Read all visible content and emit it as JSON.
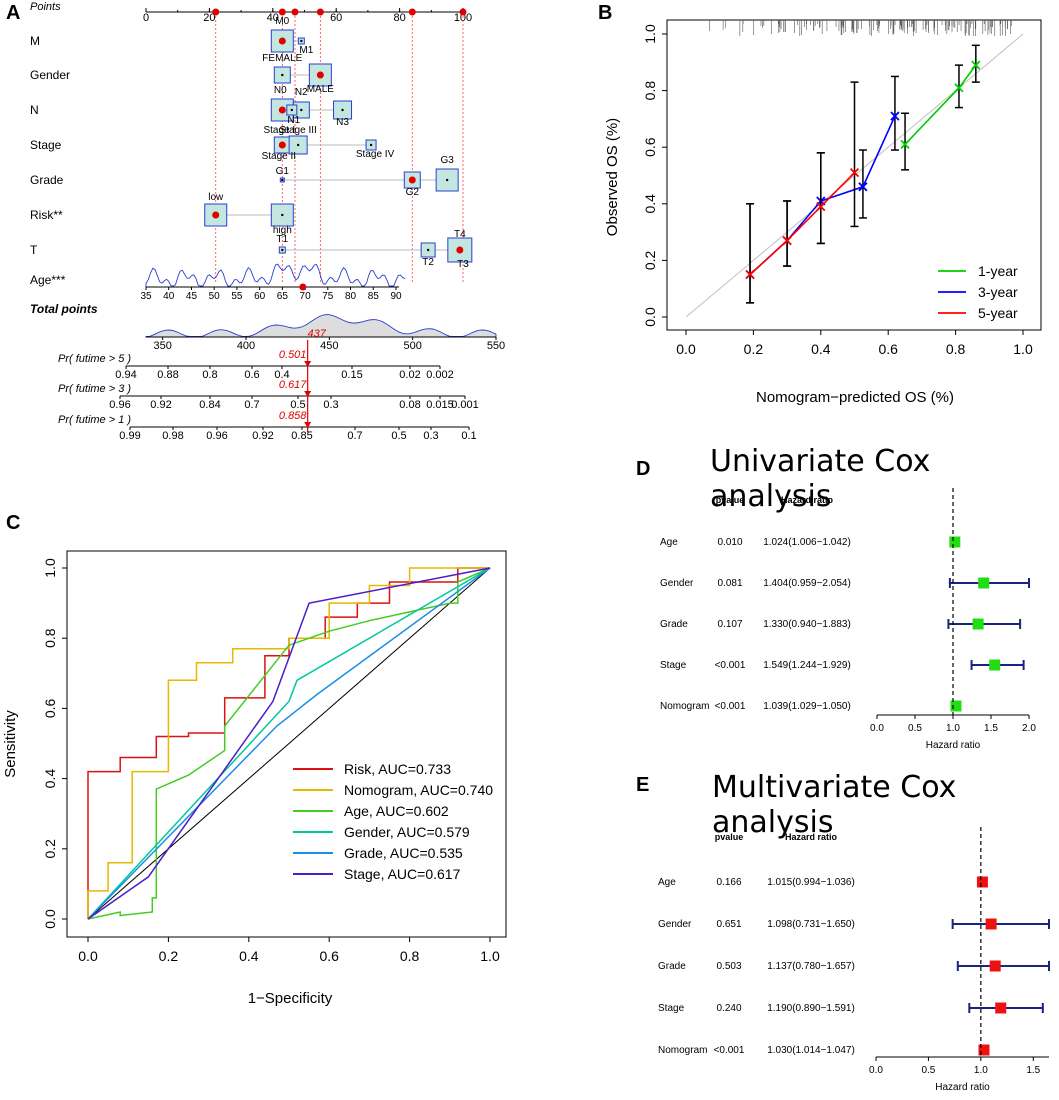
{
  "panels": {
    "A": "A",
    "B": "B",
    "C": "C",
    "D": "D",
    "E": "E"
  },
  "nomogram": {
    "points_label": "Points",
    "points_ticks": [
      "0",
      "20",
      "40",
      "60",
      "80",
      "100"
    ],
    "variables": [
      {
        "name": "M",
        "levels": [
          "M0",
          "M1"
        ]
      },
      {
        "name": "Gender",
        "levels": [
          "FEMALE",
          "MALE"
        ]
      },
      {
        "name": "N",
        "levels": [
          "N0",
          "N2",
          "N1",
          "N3"
        ]
      },
      {
        "name": "Stage",
        "levels": [
          "Stage I",
          "Stage III",
          "Stage II",
          "Stage IV"
        ]
      },
      {
        "name": "Grade",
        "levels": [
          "G1",
          "G2",
          "G3"
        ]
      },
      {
        "name": "Risk**",
        "levels": [
          "low",
          "high"
        ]
      },
      {
        "name": "T",
        "levels": [
          "T1",
          "T4",
          "T2",
          "T3"
        ]
      },
      {
        "name": "Age***",
        "ticks": [
          "35",
          "40",
          "45",
          "50",
          "55",
          "60",
          "65",
          "70",
          "75",
          "80",
          "85",
          "90"
        ]
      }
    ],
    "total_points_label": "Total points",
    "total_points_ticks": [
      "350",
      "400",
      "450",
      "500",
      "550"
    ],
    "total_points_value": "437",
    "prob_rows": [
      {
        "label": "Pr( futime > 5 )",
        "value": "0.501",
        "ticks": [
          "0.94",
          "0.88",
          "0.8",
          "0.6",
          "0.4",
          "0.15",
          "0.02",
          "0.002"
        ]
      },
      {
        "label": "Pr( futime > 3 )",
        "value": "0.617",
        "ticks": [
          "0.96",
          "0.92",
          "0.84",
          "0.7",
          "0.5",
          "0.3",
          "0.08",
          "0.015",
          "0.001"
        ]
      },
      {
        "label": "Pr( futime > 1 )",
        "value": "0.858",
        "ticks": [
          "0.99",
          "0.98",
          "0.96",
          "0.92",
          "0.85",
          "0.7",
          "0.5",
          "0.3",
          "0.1"
        ]
      }
    ]
  },
  "chart_data": [
    {
      "type": "line",
      "panel": "B",
      "xlabel": "Nomogram−predicted OS (%)",
      "ylabel": "Observed OS (%)",
      "xlim": [
        0,
        1
      ],
      "ylim": [
        0,
        1
      ],
      "x_ticks": [
        "0.0",
        "0.2",
        "0.4",
        "0.6",
        "0.8",
        "1.0"
      ],
      "y_ticks": [
        "0.0",
        "0.2",
        "0.4",
        "0.6",
        "0.8",
        "1.0"
      ],
      "series": [
        {
          "name": "1-year",
          "color": "#00cc00",
          "x": [
            0.65,
            0.81,
            0.86
          ],
          "y": [
            0.61,
            0.81,
            0.89
          ],
          "lower": [
            0.52,
            0.74,
            0.83
          ],
          "upper": [
            0.72,
            0.89,
            0.96
          ]
        },
        {
          "name": "3-year",
          "color": "#0000ff",
          "x": [
            0.19,
            0.3,
            0.4,
            0.525,
            0.62
          ],
          "y": [
            0.15,
            0.27,
            0.41,
            0.46,
            0.71
          ],
          "lower": [
            0.05,
            0.18,
            0.26,
            0.35,
            0.59
          ],
          "upper": [
            0.4,
            0.41,
            0.58,
            0.59,
            0.85
          ]
        },
        {
          "name": "5-year",
          "color": "#ff0000",
          "x": [
            0.19,
            0.3,
            0.4,
            0.5
          ],
          "y": [
            0.15,
            0.27,
            0.39,
            0.51
          ],
          "lower": [
            0.05,
            0.18,
            0.26,
            0.32
          ],
          "upper": [
            0.4,
            0.41,
            0.58,
            0.83
          ]
        }
      ]
    },
    {
      "type": "line",
      "panel": "C",
      "xlabel": "1−Specificity",
      "ylabel": "Sensitivity",
      "xlim": [
        0,
        1
      ],
      "ylim": [
        0,
        1
      ],
      "x_ticks": [
        "0.0",
        "0.2",
        "0.4",
        "0.6",
        "0.8",
        "1.0"
      ],
      "y_ticks": [
        "0.0",
        "0.2",
        "0.4",
        "0.6",
        "0.8",
        "1.0"
      ],
      "series": [
        {
          "name": "Risk, AUC=0.733",
          "color": "#dd1111",
          "x": [
            0,
            0,
            0.08,
            0.08,
            0.17,
            0.17,
            0.25,
            0.25,
            0.34,
            0.34,
            0.44,
            0.44,
            0.5,
            0.5,
            0.59,
            0.59,
            0.67,
            0.67,
            0.75,
            0.75,
            0.92,
            0.92,
            1
          ],
          "y": [
            0,
            0.42,
            0.42,
            0.46,
            0.46,
            0.52,
            0.52,
            0.53,
            0.53,
            0.63,
            0.63,
            0.75,
            0.75,
            0.8,
            0.8,
            0.86,
            0.86,
            0.9,
            0.9,
            0.96,
            0.96,
            1,
            1
          ]
        },
        {
          "name": "Nomogram, AUC=0.740",
          "color": "#e6b800",
          "x": [
            0,
            0,
            0.05,
            0.05,
            0.11,
            0.11,
            0.2,
            0.2,
            0.27,
            0.27,
            0.36,
            0.36,
            0.5,
            0.5,
            0.6,
            0.6,
            0.7,
            0.7,
            0.8,
            0.8,
            1
          ],
          "y": [
            0,
            0.08,
            0.08,
            0.16,
            0.16,
            0.42,
            0.42,
            0.68,
            0.68,
            0.73,
            0.73,
            0.77,
            0.77,
            0.8,
            0.8,
            0.9,
            0.9,
            0.95,
            0.95,
            1,
            1
          ]
        },
        {
          "name": "Age, AUC=0.602",
          "color": "#44cc22",
          "x": [
            0,
            0.08,
            0.08,
            0.16,
            0.16,
            0.17,
            0.17,
            0.25,
            0.34,
            0.34,
            0.5,
            0.6,
            0.7,
            0.78,
            0.9,
            0.92,
            0.92,
            1
          ],
          "y": [
            0,
            0.02,
            0.01,
            0.02,
            0.06,
            0.06,
            0.37,
            0.41,
            0.48,
            0.55,
            0.78,
            0.82,
            0.85,
            0.87,
            0.9,
            0.9,
            0.96,
            1
          ]
        },
        {
          "name": "Gender, AUC=0.579",
          "color": "#00c9a0",
          "x": [
            0,
            0.5,
            0.52,
            1
          ],
          "y": [
            0,
            0.62,
            0.68,
            1
          ]
        },
        {
          "name": "Grade, AUC=0.535",
          "color": "#1a8fe6",
          "x": [
            0,
            0.47,
            0.57,
            1
          ],
          "y": [
            0,
            0.55,
            0.64,
            1
          ]
        },
        {
          "name": "Stage, AUC=0.617",
          "color": "#4b1cc8",
          "x": [
            0,
            0.15,
            0.46,
            0.55,
            1
          ],
          "y": [
            0,
            0.12,
            0.62,
            0.9,
            1
          ]
        }
      ]
    },
    {
      "type": "forest",
      "panel": "D",
      "title": "Univariate Cox analysis",
      "col_pvalue": "pvalue",
      "col_hr": "Hazard ratio",
      "xlabel": "Hazard ratio",
      "xlim": [
        0,
        2
      ],
      "x_ticks": [
        "0.0",
        "0.5",
        "1.0",
        "1.5",
        "2.0"
      ],
      "color": "#22dd11",
      "rows": [
        {
          "name": "Age",
          "pvalue": "0.010",
          "hr_text": "1.024(1.006−1.042)",
          "hr": 1.024,
          "lo": 1.006,
          "hi": 1.042
        },
        {
          "name": "Gender",
          "pvalue": "0.081",
          "hr_text": "1.404(0.959−2.054)",
          "hr": 1.404,
          "lo": 0.959,
          "hi": 2.054
        },
        {
          "name": "Grade",
          "pvalue": "0.107",
          "hr_text": "1.330(0.940−1.883)",
          "hr": 1.33,
          "lo": 0.94,
          "hi": 1.883
        },
        {
          "name": "Stage",
          "pvalue": "<0.001",
          "hr_text": "1.549(1.244−1.929)",
          "hr": 1.549,
          "lo": 1.244,
          "hi": 1.929
        },
        {
          "name": "Nomogram",
          "pvalue": "<0.001",
          "hr_text": "1.039(1.029−1.050)",
          "hr": 1.039,
          "lo": 1.029,
          "hi": 1.05
        }
      ]
    },
    {
      "type": "forest",
      "panel": "E",
      "title": "Multivariate Cox analysis",
      "col_pvalue": "pvalue",
      "col_hr": "Hazard ratio",
      "xlabel": "Hazard ratio",
      "xlim": [
        0,
        1.65
      ],
      "x_ticks": [
        "0.0",
        "0.5",
        "1.0",
        "1.5"
      ],
      "color": "#ee1111",
      "rows": [
        {
          "name": "Age",
          "pvalue": "0.166",
          "hr_text": "1.015(0.994−1.036)",
          "hr": 1.015,
          "lo": 0.994,
          "hi": 1.036
        },
        {
          "name": "Gender",
          "pvalue": "0.651",
          "hr_text": "1.098(0.731−1.650)",
          "hr": 1.098,
          "lo": 0.731,
          "hi": 1.65
        },
        {
          "name": "Grade",
          "pvalue": "0.503",
          "hr_text": "1.137(0.780−1.657)",
          "hr": 1.137,
          "lo": 0.78,
          "hi": 1.657
        },
        {
          "name": "Stage",
          "pvalue": "0.240",
          "hr_text": "1.190(0.890−1.591)",
          "hr": 1.19,
          "lo": 0.89,
          "hi": 1.591
        },
        {
          "name": "Nomogram",
          "pvalue": "<0.001",
          "hr_text": "1.030(1.014−1.047)",
          "hr": 1.03,
          "lo": 1.014,
          "hi": 1.047
        }
      ]
    }
  ]
}
